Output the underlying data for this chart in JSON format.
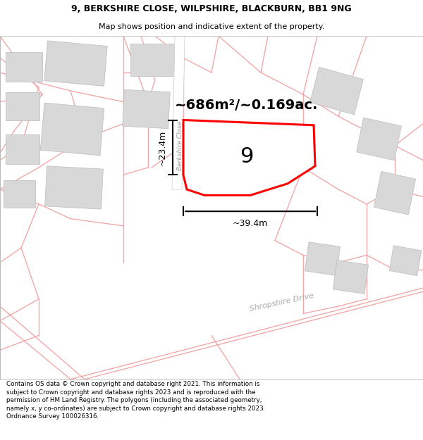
{
  "title_line1": "9, BERKSHIRE CLOSE, WILPSHIRE, BLACKBURN, BB1 9NG",
  "title_line2": "Map shows position and indicative extent of the property.",
  "area_label": "~686m²/~0.169ac.",
  "plot_number": "9",
  "width_label": "~39.4m",
  "height_label": "~23.4m",
  "street_label1": "Berkshire Close",
  "street_label2": "Shropshire Drive",
  "footer_text": "Contains OS data © Crown copyright and database right 2021. This information is subject to Crown copyright and database rights 2023 and is reproduced with the permission of HM Land Registry. The polygons (including the associated geometry, namely x, y co-ordinates) are subject to Crown copyright and database rights 2023 Ordnance Survey 100026316.",
  "map_bg": "#ffffff",
  "plot_fill": "#ffffff",
  "plot_edge": "#ff0000",
  "road_line_color": "#f0a0a0",
  "building_color": "#d8d8d8",
  "building_edge": "#bbbbbb",
  "title_bg": "#ffffff",
  "footer_bg": "#ffffff",
  "road_fill": "#f8e8e8"
}
